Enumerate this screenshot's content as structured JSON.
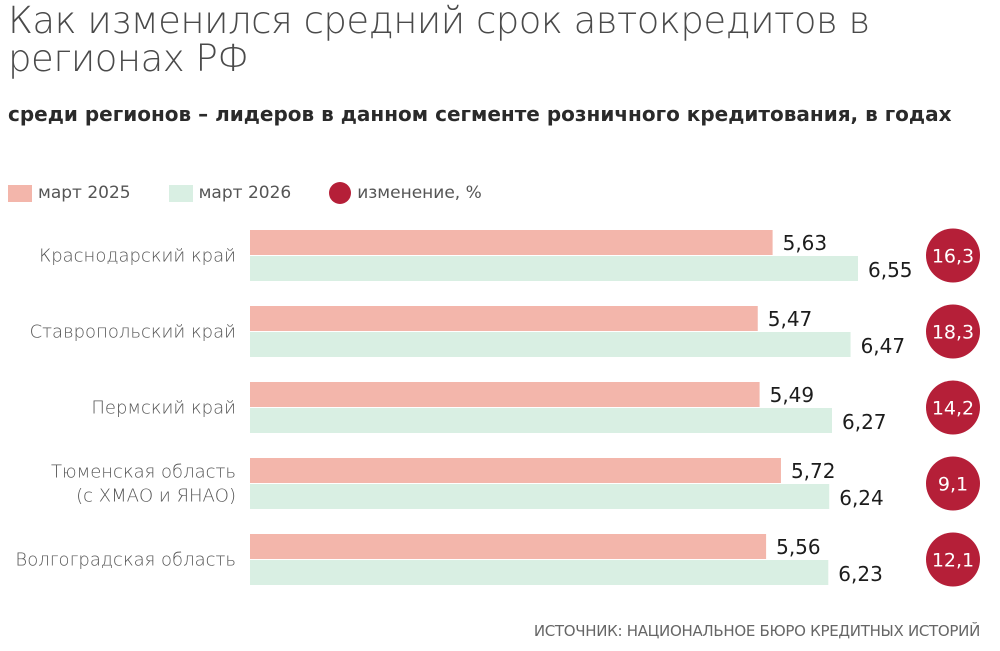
{
  "title": "Как изменился средний срок автокредитов в регионах РФ",
  "subtitle": "среди регионов – лидеров в данном сегменте розничного кредитования, в годах",
  "legend": {
    "series_a": "март 2025",
    "series_b": "март 2026",
    "change": "изменение, %"
  },
  "colors": {
    "series_a": "#f3b6ab",
    "series_b": "#d9efe3",
    "change": "#b51f38"
  },
  "source": "ИСТОЧНИК: НАЦИОНАЛЬНОЕ БЮРО КРЕДИТНЫХ ИСТОРИЙ",
  "chart_data": {
    "type": "bar",
    "orientation": "horizontal",
    "categories": [
      [
        "Краснодарский край"
      ],
      [
        "Ставропольский край"
      ],
      [
        "Пермский край"
      ],
      [
        "Тюменская область",
        "(с ХМАО и ЯНАО)"
      ],
      [
        "Волгоградская область"
      ]
    ],
    "series": [
      {
        "name": "март 2025",
        "values": [
          "5,63",
          "5,47",
          "5,49",
          "5,72",
          "5,56"
        ]
      },
      {
        "name": "март 2026",
        "values": [
          "6,55",
          "6,47",
          "6,27",
          "6,24",
          "6,23"
        ]
      }
    ],
    "change": {
      "name": "изменение, %",
      "values": [
        "16,3",
        "18,3",
        "14,2",
        "9,1",
        "12,1"
      ]
    },
    "xlim": [
      0,
      6.55
    ]
  }
}
